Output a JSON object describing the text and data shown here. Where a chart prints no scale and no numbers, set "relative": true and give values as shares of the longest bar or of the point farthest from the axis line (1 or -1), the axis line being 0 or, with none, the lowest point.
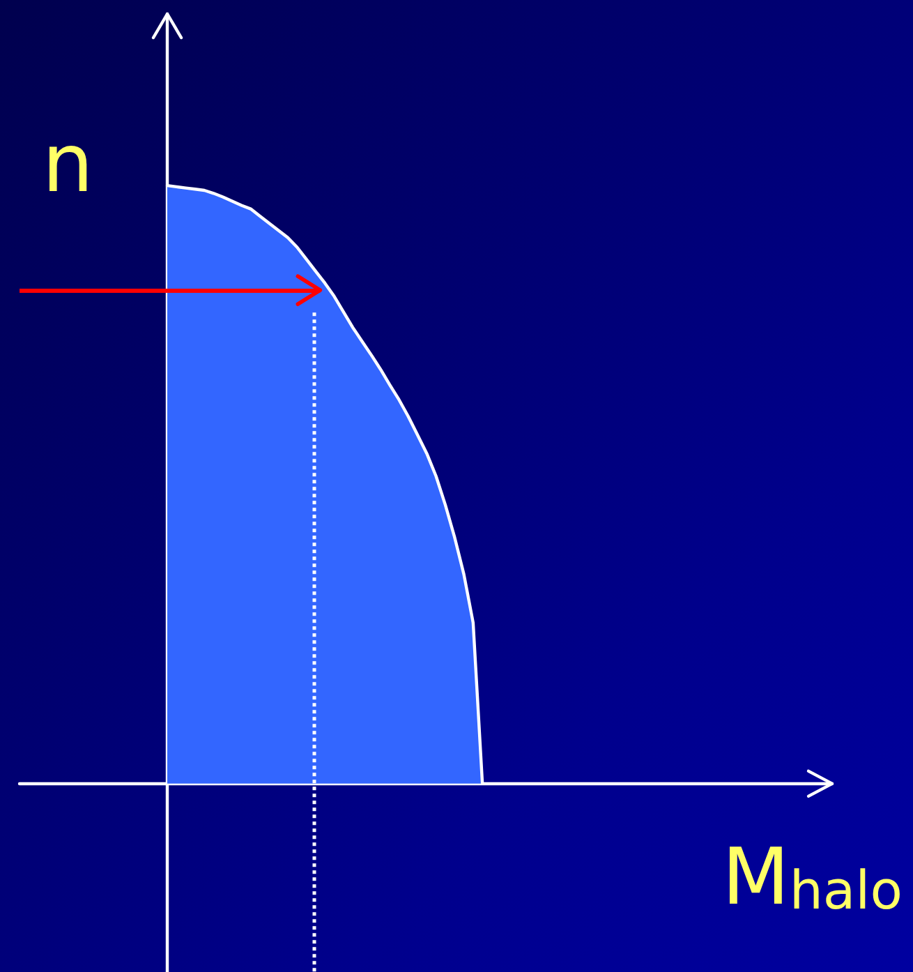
{
  "chart_data": {
    "type": "area",
    "xlabel": "M$_{halo}$",
    "ylabel": "n",
    "categories": [
      null,
      null,
      null,
      null,
      null,
      null,
      null,
      null,
      null,
      null,
      null,
      null,
      null,
      null,
      null,
      null,
      null,
      null,
      null,
      null,
      null,
      null,
      null,
      null,
      null,
      null,
      null,
      null,
      null,
      null,
      null,
      null,
      null,
      null,
      null
    ],
    "values": [
      1.0,
      0.998,
      0.996,
      0.994,
      0.992,
      0.987,
      0.981,
      0.974,
      0.967,
      0.961,
      0.949,
      0.937,
      0.925,
      0.913,
      0.897,
      0.877,
      0.857,
      0.837,
      0.815,
      0.789,
      0.763,
      0.74,
      0.717,
      0.693,
      0.667,
      0.642,
      0.614,
      0.583,
      0.552,
      0.514,
      0.466,
      0.412,
      0.35,
      0.269,
      0
    ],
    "color": "#3366ff",
    "relative": true,
    "tick_labels": false,
    "marker": "none",
    "ref_lines": [
      {
        "axis": "y",
        "value": 0.825,
        "color": "#ff0000"
      }
    ]
  }
}
